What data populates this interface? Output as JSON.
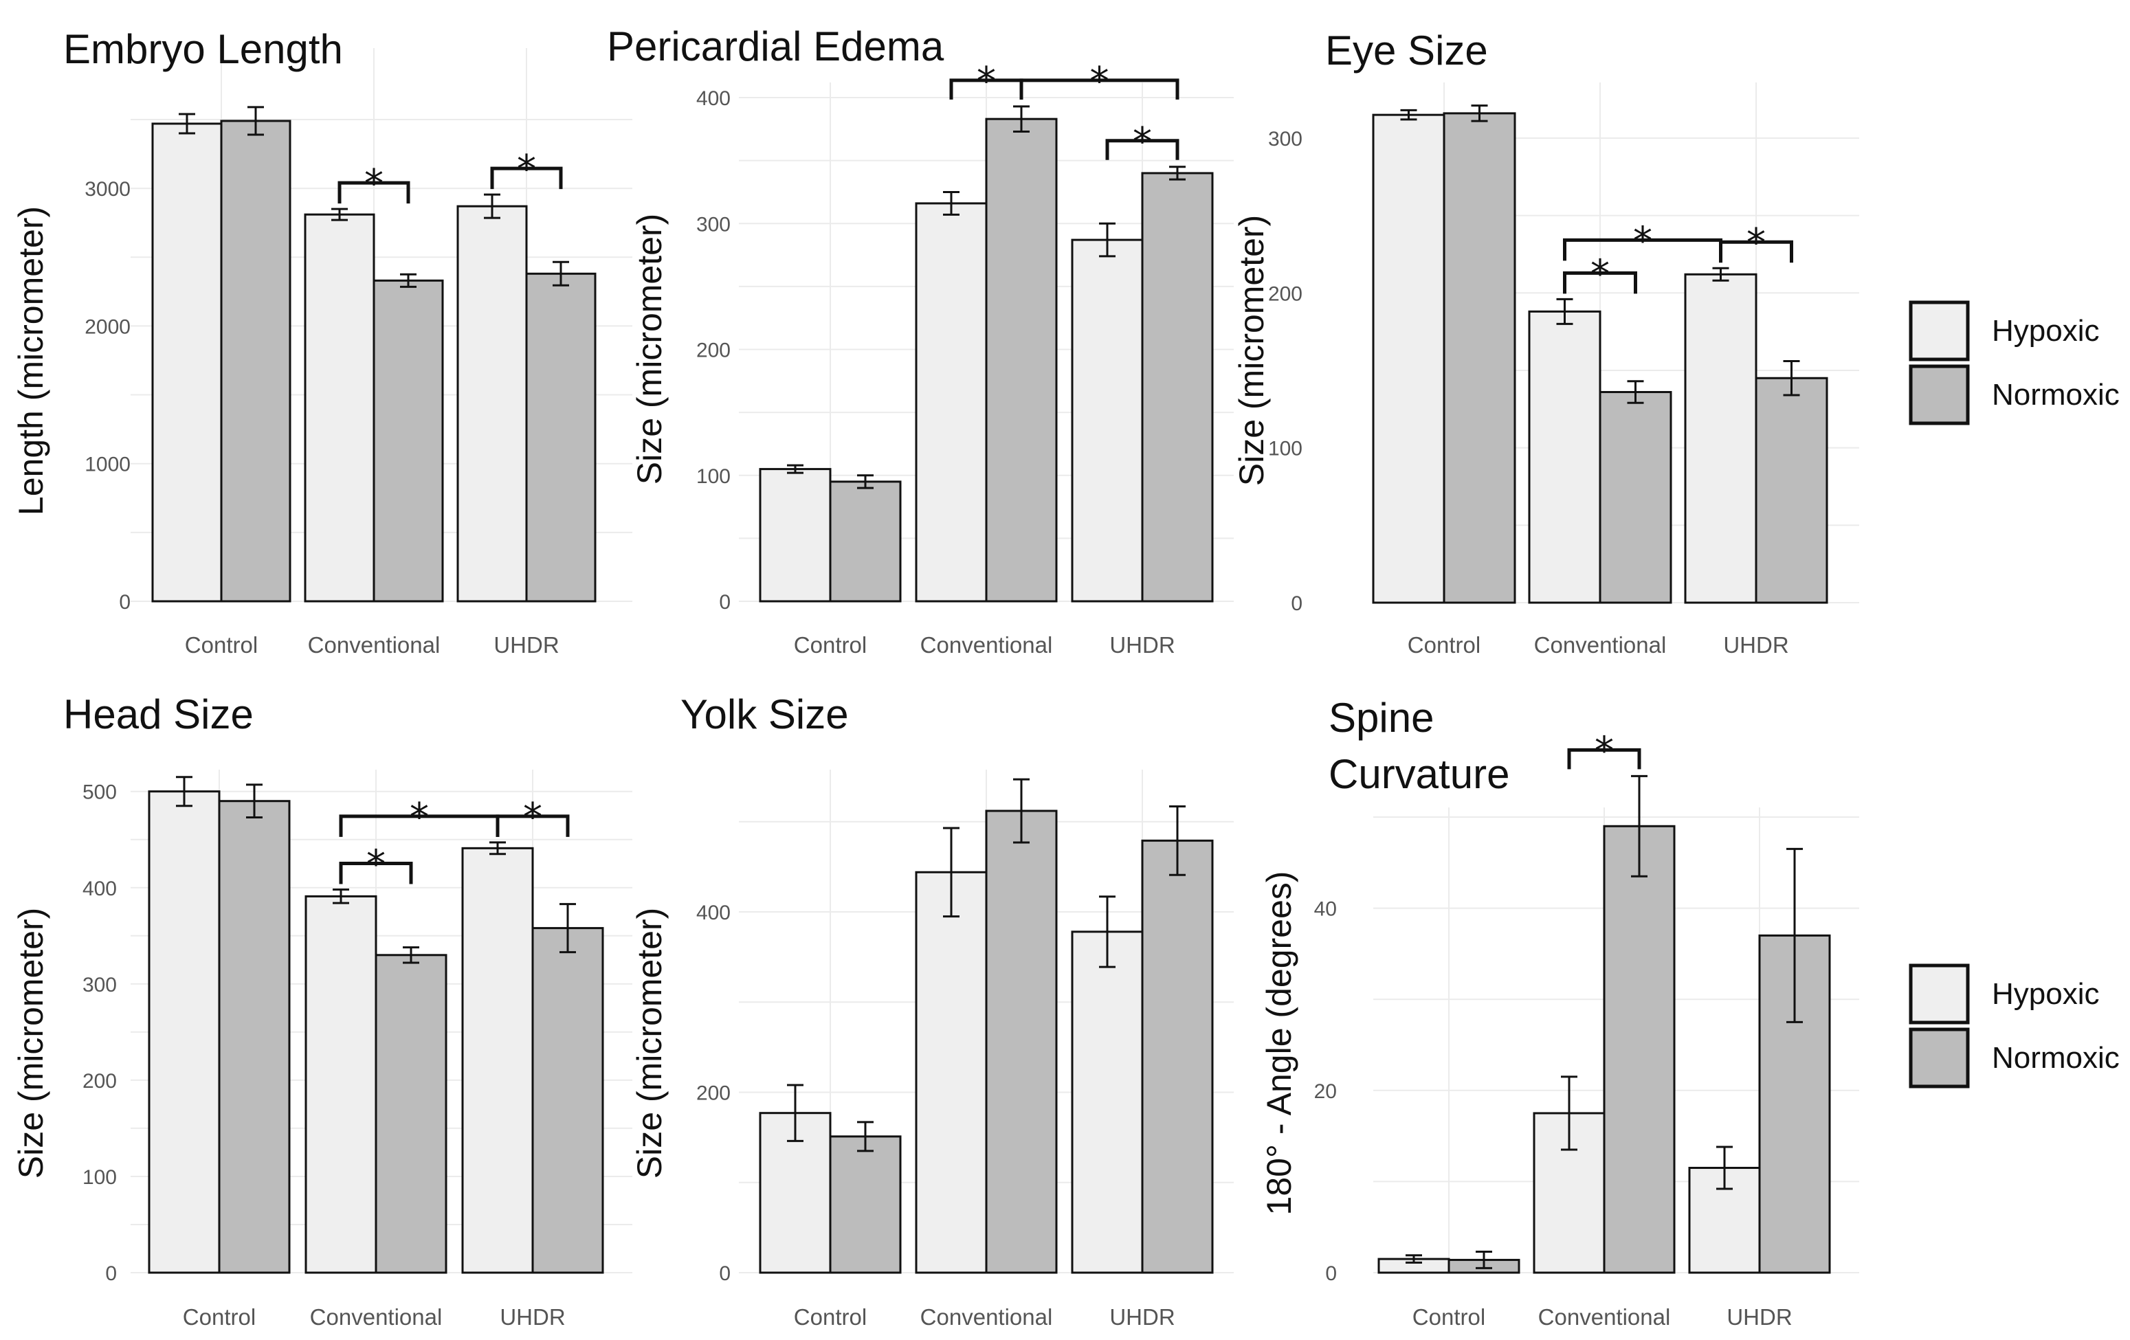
{
  "figure": {
    "legend": {
      "entries": [
        {
          "name": "Hypoxic",
          "color": "#efefef"
        },
        {
          "name": "Normoxic",
          "color": "#bcbcbc"
        }
      ]
    }
  },
  "chart_data": [
    {
      "type": "bar",
      "title": "Embryo Length",
      "xlabel": "",
      "ylabel": "Length (micrometer)",
      "categories": [
        "Control",
        "Conventional",
        "UHDR"
      ],
      "series": [
        {
          "name": "Hypoxic",
          "values": [
            3470,
            2810,
            2870
          ],
          "errors": [
            70,
            40,
            85
          ]
        },
        {
          "name": "Normoxic",
          "values": [
            3490,
            2330,
            2380
          ],
          "errors": [
            100,
            45,
            85
          ]
        }
      ],
      "ylim": [
        0,
        3700
      ],
      "yticks": [
        0,
        1000,
        2000,
        3000
      ],
      "significance": [
        {
          "from": [
            1,
            0
          ],
          "to": [
            1,
            1
          ],
          "label": "*"
        },
        {
          "from": [
            2,
            0
          ],
          "to": [
            2,
            1
          ],
          "label": "*"
        }
      ]
    },
    {
      "type": "bar",
      "title": "Pericardial Edema",
      "xlabel": "",
      "ylabel": "Size (micrometer)",
      "categories": [
        "Control",
        "Conventional",
        "UHDR"
      ],
      "series": [
        {
          "name": "Hypoxic",
          "values": [
            105,
            316,
            287
          ],
          "errors": [
            3,
            9,
            13
          ]
        },
        {
          "name": "Normoxic",
          "values": [
            95,
            383,
            340
          ],
          "errors": [
            5,
            10,
            5
          ]
        }
      ],
      "ylim": [
        0,
        410
      ],
      "yticks": [
        0,
        100,
        200,
        300,
        400
      ],
      "yticks_shown": [
        "0",
        "100",
        "200",
        "300",
        "400"
      ],
      "significance": [
        {
          "from": [
            1,
            0
          ],
          "to": [
            1,
            1
          ],
          "label": "*"
        },
        {
          "from": [
            2,
            0
          ],
          "to": [
            2,
            1
          ],
          "label": "*"
        },
        {
          "from": [
            1,
            1
          ],
          "to": [
            2,
            1
          ],
          "label": "*"
        }
      ]
    },
    {
      "type": "bar",
      "title": "Eye Size",
      "xlabel": "",
      "ylabel": "Size (micrometer)",
      "categories": [
        "Control",
        "Conventional",
        "UHDR"
      ],
      "series": [
        {
          "name": "Hypoxic",
          "values": [
            315,
            188,
            212
          ],
          "errors": [
            3,
            8,
            4
          ]
        },
        {
          "name": "Normoxic",
          "values": [
            316,
            136,
            145
          ],
          "errors": [
            5,
            7,
            11
          ]
        }
      ],
      "ylim": [
        0,
        325
      ],
      "yticks": [
        0,
        100,
        200,
        300
      ],
      "significance": [
        {
          "from": [
            1,
            0
          ],
          "to": [
            1,
            1
          ],
          "label": "*"
        },
        {
          "from": [
            2,
            0
          ],
          "to": [
            2,
            1
          ],
          "label": "*"
        },
        {
          "from": [
            1,
            0
          ],
          "to": [
            2,
            0
          ],
          "label": "*"
        }
      ]
    },
    {
      "type": "bar",
      "title": "Head Size",
      "xlabel": "",
      "ylabel": "Size (micrometer)",
      "categories": [
        "Control",
        "Conventional",
        "UHDR"
      ],
      "series": [
        {
          "name": "Hypoxic",
          "values": [
            500,
            391,
            441
          ],
          "errors": [
            15,
            7,
            6
          ]
        },
        {
          "name": "Normoxic",
          "values": [
            490,
            330,
            358
          ],
          "errors": [
            17,
            8,
            25
          ]
        }
      ],
      "ylim": [
        0,
        520
      ],
      "yticks": [
        0,
        100,
        200,
        300,
        400,
        500
      ],
      "significance": [
        {
          "from": [
            1,
            0
          ],
          "to": [
            1,
            1
          ],
          "label": "*"
        },
        {
          "from": [
            2,
            0
          ],
          "to": [
            2,
            1
          ],
          "label": "*"
        },
        {
          "from": [
            1,
            0
          ],
          "to": [
            2,
            0
          ],
          "label": "*"
        }
      ]
    },
    {
      "type": "bar",
      "title": "Yolk Size",
      "xlabel": "",
      "ylabel": "Size (micrometer)",
      "categories": [
        "Control",
        "Conventional",
        "UHDR"
      ],
      "series": [
        {
          "name": "Hypoxic",
          "values": [
            177,
            444,
            378
          ],
          "errors": [
            31,
            49,
            39
          ]
        },
        {
          "name": "Normoxic",
          "values": [
            151,
            512,
            479
          ],
          "errors": [
            16,
            35,
            38
          ]
        }
      ],
      "ylim": [
        0,
        575
      ],
      "yticks": [
        0,
        200,
        400
      ],
      "significance": []
    },
    {
      "type": "bar",
      "title": "Spine Curvature",
      "title_lines": [
        "Spine",
        "Curvature"
      ],
      "xlabel": "",
      "ylabel": "180° - Angle (degrees)",
      "categories": [
        "Control",
        "Conventional",
        "UHDR"
      ],
      "series": [
        {
          "name": "Hypoxic",
          "values": [
            1.5,
            17.5,
            11.5
          ],
          "errors": [
            0.4,
            4,
            2.3
          ]
        },
        {
          "name": "Normoxic",
          "values": [
            1.4,
            49,
            37
          ],
          "errors": [
            0.9,
            5.5,
            9.5
          ]
        }
      ],
      "ylim": [
        0,
        50.5
      ],
      "yticks": [
        0,
        20,
        40
      ],
      "significance": [
        {
          "from": [
            1,
            0
          ],
          "to": [
            1,
            1
          ],
          "label": "*"
        }
      ]
    }
  ]
}
